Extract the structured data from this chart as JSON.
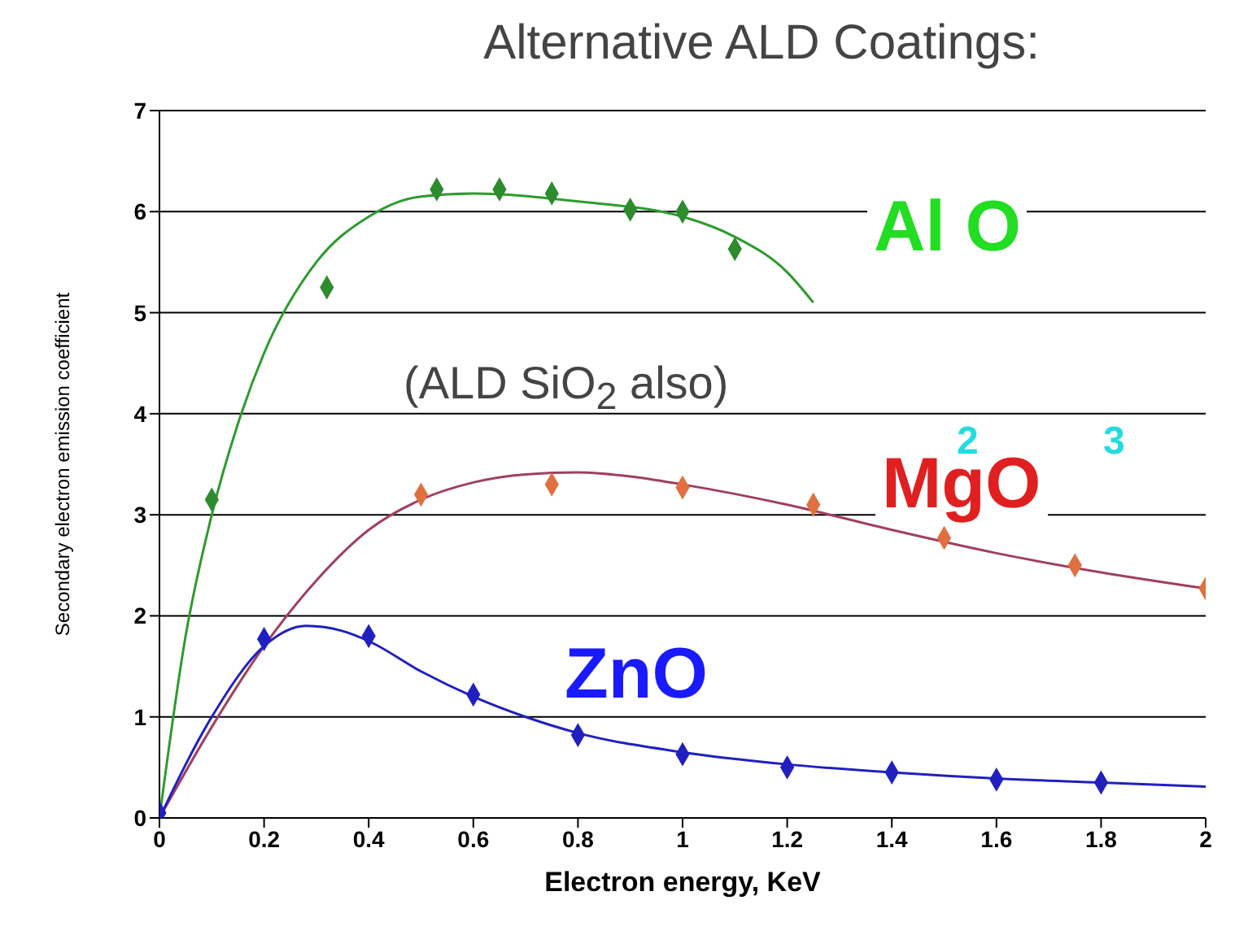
{
  "chart_data": {
    "type": "scatter",
    "title": "Alternative ALD Coatings:",
    "xlabel": "Electron energy, KeV",
    "ylabel": "Secondary electron emission coefficient",
    "xlim": [
      0,
      2
    ],
    "xticks": [
      0,
      0.2,
      0.4,
      0.6,
      0.8,
      1,
      1.2,
      1.4,
      1.6,
      1.8,
      2
    ],
    "ylim": [
      0,
      7
    ],
    "yticks": [
      0,
      1,
      2,
      3,
      4,
      5,
      6,
      7
    ],
    "grid": "y",
    "marker": "diamond",
    "annotations": [
      "(ALD SiO$_{2}$ also)",
      "2",
      "3"
    ],
    "series": [
      {
        "name": "Al O",
        "color": "#2e8b2e",
        "x": [
          0.1,
          0.32,
          0.53,
          0.65,
          0.75,
          0.9,
          1.0,
          1.1
        ],
        "values": [
          3.15,
          5.25,
          6.22,
          6.22,
          6.18,
          6.02,
          6.0,
          5.63
        ]
      },
      {
        "type": "line",
        "color": "#2e9b2e",
        "marker": "none",
        "x": [
          0,
          0.05,
          0.1,
          0.15,
          0.2,
          0.3,
          0.4,
          0.5,
          0.6,
          0.8,
          1.0,
          1.1,
          1.2,
          1.25
        ],
        "values": [
          0,
          1.8,
          3.0,
          3.9,
          4.6,
          5.5,
          5.95,
          6.15,
          6.18,
          6.1,
          5.95,
          5.75,
          5.4,
          5.1
        ]
      },
      {
        "name": "MgO",
        "color": "#e07040",
        "x": [
          0.5,
          0.75,
          1.0,
          1.25,
          1.5,
          1.75,
          2.0
        ],
        "values": [
          3.2,
          3.3,
          3.27,
          3.1,
          2.77,
          2.5,
          2.27
        ]
      },
      {
        "type": "line",
        "color": "#a04060",
        "marker": "none",
        "x": [
          0,
          0.1,
          0.2,
          0.3,
          0.4,
          0.5,
          0.6,
          0.7,
          0.8,
          0.9,
          1.0,
          1.2,
          1.4,
          1.6,
          1.8,
          2.0
        ],
        "values": [
          0,
          0.9,
          1.7,
          2.35,
          2.85,
          3.15,
          3.32,
          3.4,
          3.42,
          3.38,
          3.3,
          3.1,
          2.85,
          2.62,
          2.43,
          2.27
        ]
      },
      {
        "name": "ZnO",
        "color": "#2020c0",
        "x": [
          0,
          0.2,
          0.4,
          0.6,
          0.8,
          1.0,
          1.2,
          1.4,
          1.6,
          1.8
        ],
        "values": [
          0.05,
          1.77,
          1.8,
          1.22,
          0.82,
          0.63,
          0.5,
          0.45,
          0.38,
          0.35
        ]
      },
      {
        "type": "line",
        "color": "#2020c0",
        "marker": "none",
        "x": [
          0,
          0.1,
          0.2,
          0.28,
          0.35,
          0.4,
          0.5,
          0.6,
          0.7,
          0.8,
          1.0,
          1.2,
          1.4,
          1.6,
          1.8,
          2.0
        ],
        "values": [
          0,
          1.0,
          1.7,
          1.9,
          1.85,
          1.75,
          1.45,
          1.2,
          1.0,
          0.84,
          0.65,
          0.53,
          0.45,
          0.39,
          0.35,
          0.31
        ]
      }
    ]
  }
}
